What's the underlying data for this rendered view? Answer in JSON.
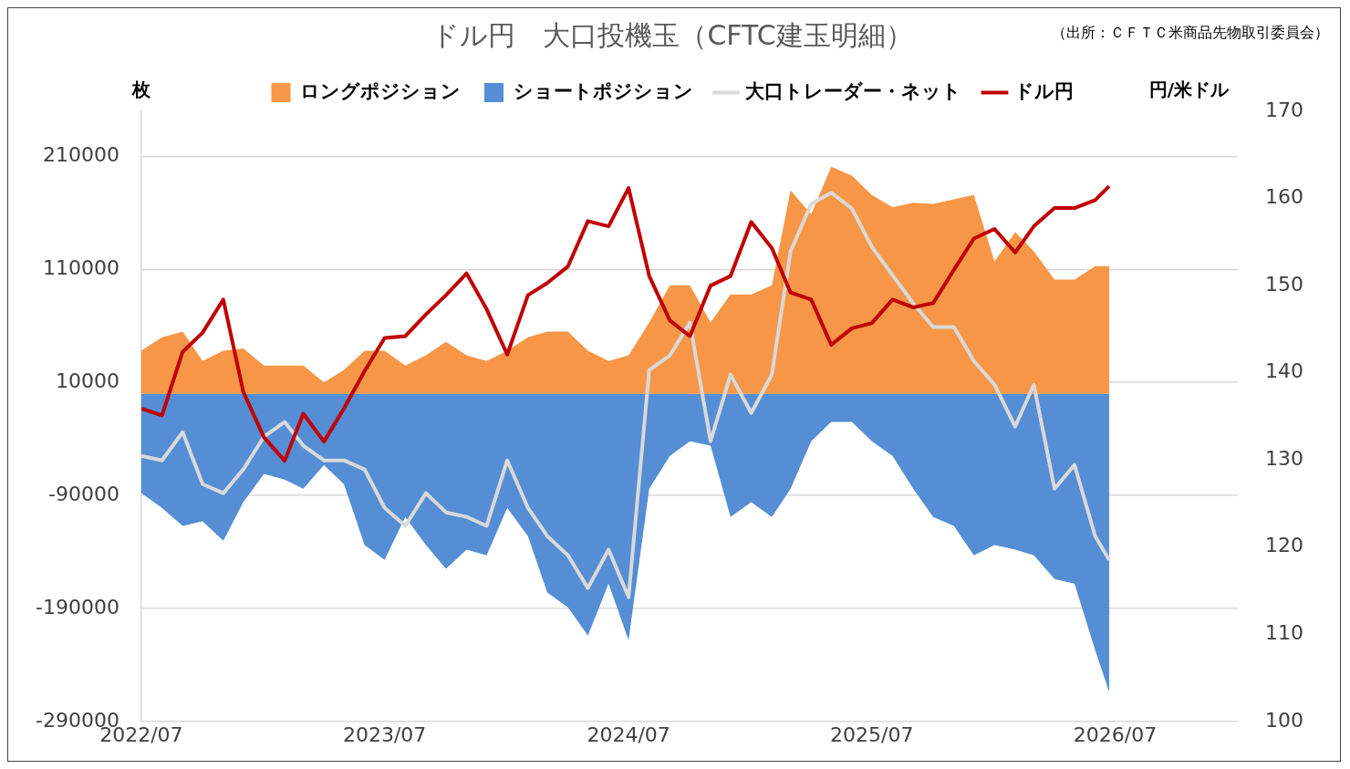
{
  "chart_data": {
    "type": "area",
    "title": "ドル円　大口投機玉（CFTC建玉明細）",
    "annotations": [
      "（出所：ＣＦＴＣ米商品先物取引委員会）"
    ],
    "ylabel": "枚",
    "y2label": "円/米ドル",
    "x": [
      "2022-07-01",
      "2022-08-01",
      "2022-09-01",
      "2022-10-01",
      "2022-11-01",
      "2022-12-01",
      "2023-01-01",
      "2023-02-01",
      "2023-03-01",
      "2023-04-01",
      "2023-05-01",
      "2023-06-01",
      "2023-07-01",
      "2023-08-01",
      "2023-09-01",
      "2023-10-01",
      "2023-11-01",
      "2023-12-01",
      "2024-01-01",
      "2024-02-01",
      "2024-03-01",
      "2024-04-01",
      "2024-05-01",
      "2024-06-01",
      "2024-07-01",
      "2024-08-01",
      "2024-09-01",
      "2024-10-01",
      "2024-11-01",
      "2024-12-01",
      "2025-01-01",
      "2025-02-01",
      "2025-03-01",
      "2025-04-01",
      "2025-05-01",
      "2025-06-01",
      "2025-07-01",
      "2025-08-01",
      "2025-09-01",
      "2025-10-01",
      "2025-11-01",
      "2025-12-01",
      "2026-01-01",
      "2026-02-01",
      "2026-03-01",
      "2026-04-01",
      "2026-05-01",
      "2026-06-01",
      "2026-06-22"
    ],
    "series": [
      {
        "name": "ロングポジション",
        "color": "#f79646",
        "values": [
          38000,
          50000,
          55000,
          29000,
          38000,
          40000,
          25000,
          25000,
          25000,
          10000,
          21000,
          38000,
          38000,
          25000,
          34000,
          46000,
          34000,
          29000,
          38000,
          50000,
          55000,
          55000,
          38000,
          29000,
          34000,
          63000,
          96000,
          96000,
          63000,
          88000,
          88000,
          96000,
          180000,
          159000,
          201000,
          193000,
          176000,
          165000,
          169000,
          168000,
          172000,
          176000,
          117000,
          143000,
          126000,
          101000,
          101000,
          113000,
          113000
        ]
      },
      {
        "name": "ショートポジション",
        "color": "#558ed5",
        "values": [
          -88000,
          -101000,
          -117000,
          -113000,
          -130000,
          -96000,
          -71000,
          -76000,
          -84000,
          -63000,
          -80000,
          -134000,
          -147000,
          -109000,
          -134000,
          -155000,
          -138000,
          -143000,
          -101000,
          -126000,
          -176000,
          -189000,
          -214000,
          -168000,
          -218000,
          -84000,
          -55000,
          -42000,
          -46000,
          -109000,
          -96000,
          -109000,
          -84000,
          -42000,
          -25000,
          -25000,
          -42000,
          -55000,
          -84000,
          -109000,
          -117000,
          -143000,
          -134000,
          -138000,
          -143000,
          -164000,
          -168000,
          -227000,
          -264000
        ]
      },
      {
        "name": "大口トレーダー・ネット",
        "type": "line",
        "color": "#d9d9d9",
        "values": [
          -55000,
          -59000,
          -34000,
          -80000,
          -88000,
          -67000,
          -38000,
          -25000,
          -46000,
          -59000,
          -59000,
          -67000,
          -101000,
          -117000,
          -88000,
          -105000,
          -109000,
          -117000,
          -59000,
          -101000,
          -126000,
          -143000,
          -172000,
          -138000,
          -180000,
          21000,
          34000,
          63000,
          -42000,
          17000,
          -17000,
          17000,
          126000,
          168000,
          178000,
          164000,
          130000,
          105000,
          80000,
          59000,
          59000,
          29000,
          8000,
          -29000,
          8000,
          -84000,
          -63000,
          -126000,
          -147000
        ]
      },
      {
        "name": "ドル円",
        "type": "line",
        "axis": "y2",
        "color": "#c00000",
        "values": [
          135.9,
          135.1,
          142.4,
          144.6,
          148.4,
          137.8,
          132.6,
          129.9,
          135.3,
          132.1,
          135.9,
          140.2,
          144.0,
          144.2,
          146.7,
          148.9,
          151.4,
          147.3,
          142.1,
          148.9,
          150.3,
          152.2,
          157.4,
          156.8,
          161.2,
          151.1,
          146.0,
          144.2,
          150.0,
          151.1,
          157.3,
          154.3,
          149.2,
          148.4,
          143.2,
          145.1,
          145.7,
          148.4,
          147.5,
          148.0,
          151.8,
          155.4,
          156.5,
          153.8,
          156.8,
          158.9,
          158.9,
          159.8,
          161.4
        ]
      }
    ],
    "xlim": [
      "2022-07",
      "2027-01"
    ],
    "xticks": [
      {
        "value": "2022-07",
        "label": "2022/07"
      },
      {
        "value": "2023-07",
        "label": "2023/07"
      },
      {
        "value": "2024-07",
        "label": "2024/07"
      },
      {
        "value": "2025-07",
        "label": "2025/07"
      },
      {
        "value": "2026-07",
        "label": "2026/07"
      }
    ],
    "ylim": [
      -290000,
      250000
    ],
    "yticks": [
      -290000,
      -190000,
      -90000,
      10000,
      110000,
      210000
    ],
    "y2lim": [
      100,
      170
    ],
    "y2ticks": [
      100,
      110,
      120,
      130,
      140,
      150,
      160,
      170
    ],
    "grid": "y",
    "legend": "top",
    "marker": "none",
    "line_style": "solid"
  }
}
